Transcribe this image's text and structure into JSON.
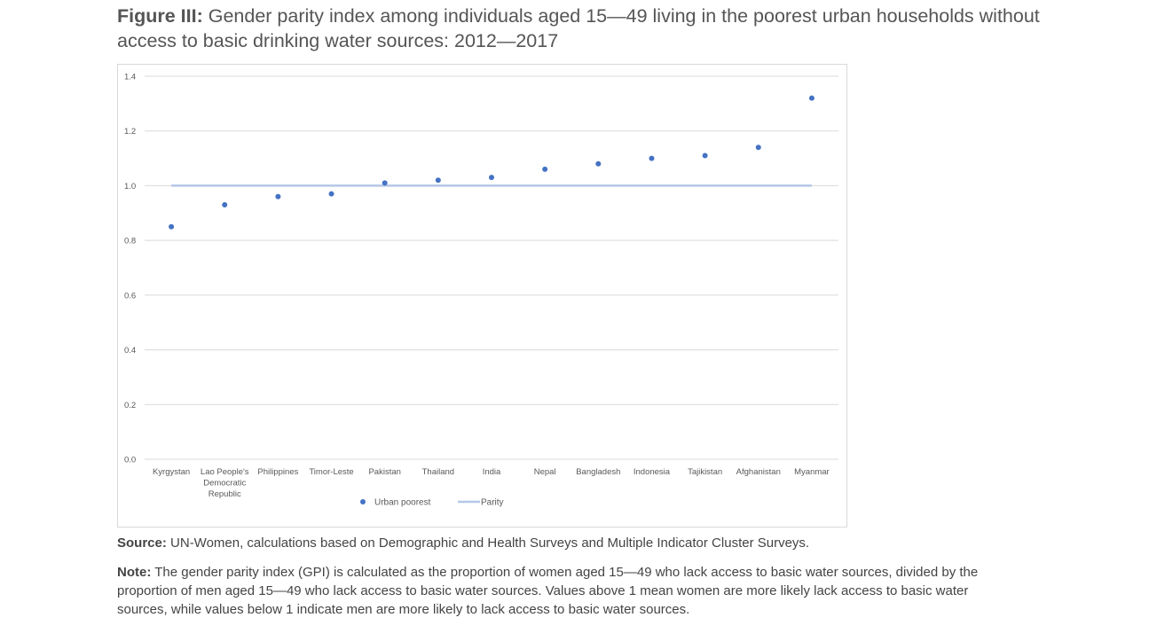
{
  "figure": {
    "label": "Figure III:",
    "title": " Gender parity index among individuals aged 15—49 living in the poorest urban households without access to basic drinking water sources: 2012—2017"
  },
  "source": {
    "label": "Source:",
    "text": " UN-Women, calculations based on Demographic and Health Surveys and Multiple Indicator Cluster Surveys."
  },
  "note": {
    "label": "Note:",
    "text": " The gender parity index (GPI) is calculated as the proportion of women aged 15—49 who lack access to basic water sources, divided by the proportion of men aged 15—49 who lack access to basic water sources. Values above 1 mean women are more likely lack access to basic water sources, while values below 1 indicate men are more likely to lack access to basic water sources."
  },
  "chart_data": {
    "type": "scatter",
    "title": "",
    "xlabel": "",
    "ylabel": "",
    "categories": [
      [
        "Kyrgystan"
      ],
      [
        "Lao People's",
        "Democratic",
        "Republic"
      ],
      [
        "Philippines"
      ],
      [
        "Timor-Leste"
      ],
      [
        "Pakistan"
      ],
      [
        "Thailand"
      ],
      [
        "India"
      ],
      [
        "Nepal"
      ],
      [
        "Bangladesh"
      ],
      [
        "Indonesia"
      ],
      [
        "Tajikistan"
      ],
      [
        "Afghanistan"
      ],
      [
        "Myanmar"
      ]
    ],
    "series": [
      {
        "name": "Urban poorest",
        "kind": "points",
        "color": "#4472c4",
        "values": [
          0.85,
          0.93,
          0.96,
          0.97,
          1.01,
          1.02,
          1.03,
          1.06,
          1.08,
          1.1,
          1.11,
          1.14,
          1.32
        ]
      },
      {
        "name": "Parity",
        "kind": "line",
        "color": "#b4c7e7",
        "values": [
          1.0,
          1.0,
          1.0,
          1.0,
          1.0,
          1.0,
          1.0,
          1.0,
          1.0,
          1.0,
          1.0,
          1.0,
          1.0
        ]
      }
    ],
    "yticks": [
      "0.0",
      "0.2",
      "0.4",
      "0.6",
      "0.8",
      "1.0",
      "1.2",
      "1.4"
    ],
    "ylim": [
      0,
      1.4
    ],
    "grid": true,
    "legend": "bottom-center",
    "gridColor": "#d9d9d9"
  }
}
